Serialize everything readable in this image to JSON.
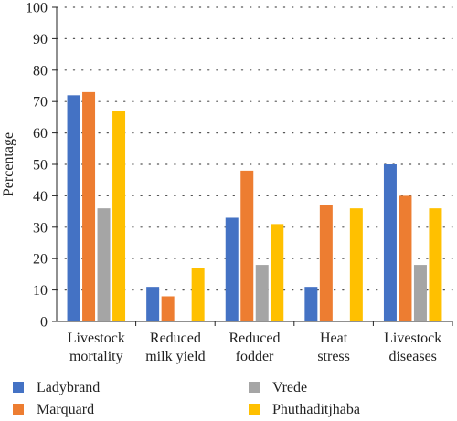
{
  "chart_data": {
    "type": "bar",
    "title": "",
    "xlabel": "",
    "ylabel": "Percentage",
    "ylim": [
      0,
      100
    ],
    "yticks": [
      0,
      10,
      20,
      30,
      40,
      50,
      60,
      70,
      80,
      90,
      100
    ],
    "grid": "horizontal dotted",
    "legend_position": "bottom",
    "categories": [
      [
        "Livestock",
        "mortality"
      ],
      [
        "Reduced",
        "milk yield"
      ],
      [
        "Reduced",
        "fodder"
      ],
      [
        "Heat",
        "stress"
      ],
      [
        "Livestock",
        "diseases"
      ]
    ],
    "series": [
      {
        "name": "Ladybrand",
        "color": "#4472C4",
        "values": [
          72,
          11,
          33,
          11,
          50
        ]
      },
      {
        "name": "Marquard",
        "color": "#ED7D31",
        "values": [
          73,
          8,
          48,
          37,
          40
        ]
      },
      {
        "name": "Vrede",
        "color": "#A5A5A5",
        "values": [
          36,
          0,
          18,
          0,
          18
        ]
      },
      {
        "name": "Phuthaditjhaba",
        "color": "#FFC000",
        "values": [
          67,
          17,
          31,
          36,
          36
        ]
      }
    ]
  }
}
